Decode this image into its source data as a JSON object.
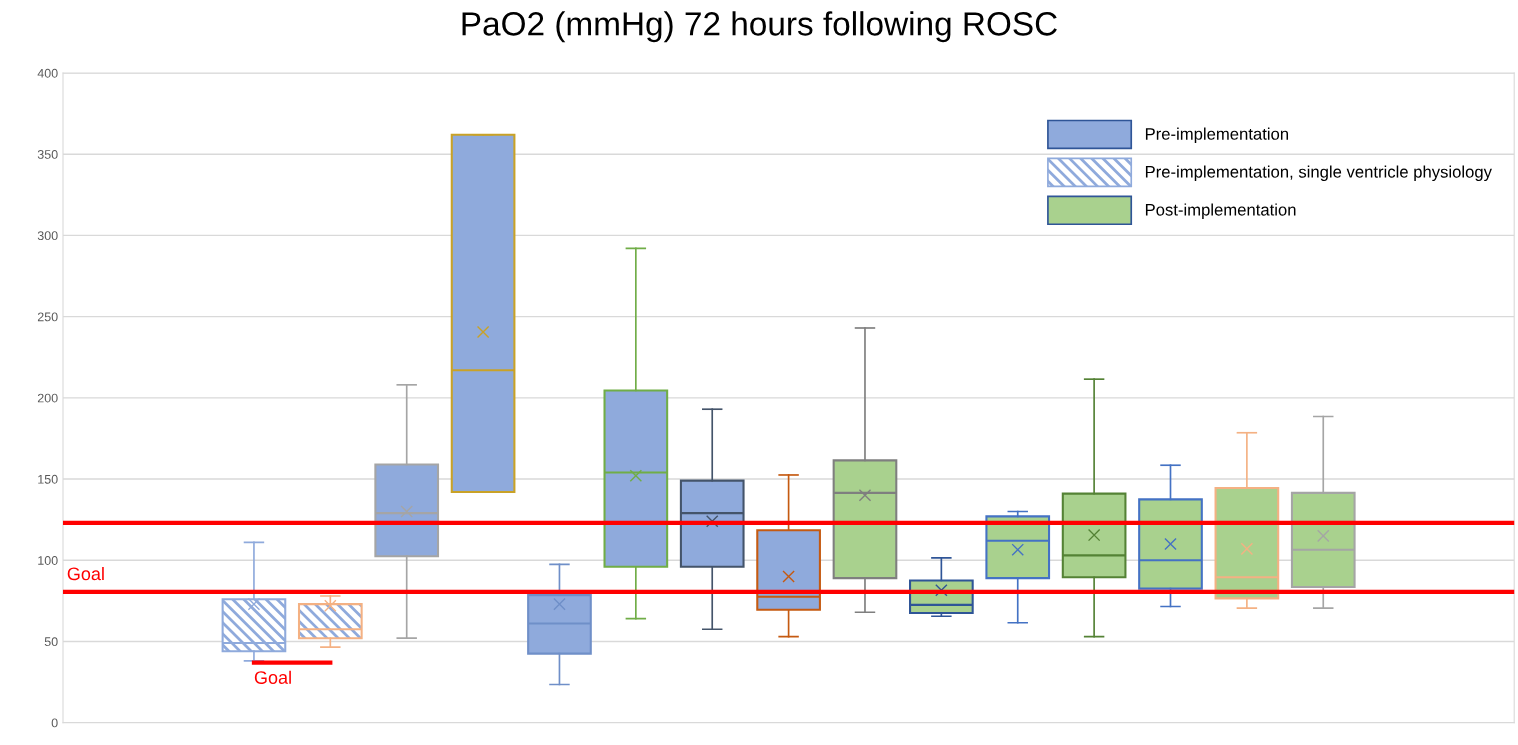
{
  "chart_data": {
    "type": "box",
    "title": "PaO2 (mmHg) 72 hours following ROSC",
    "categories": [
      null,
      null,
      null,
      null,
      null,
      null,
      null,
      null,
      null,
      null,
      null,
      null,
      null,
      null,
      null,
      null,
      null,
      null,
      null
    ],
    "ylim": [
      0,
      400
    ],
    "yticks": [
      0,
      50,
      100,
      150,
      200,
      250,
      300,
      350,
      400
    ],
    "grid": "y",
    "legend": "top right",
    "series": [
      {
        "name": "Pre-implementation",
        "color": "#8faadc",
        "marker": "cross",
        "colors": [
          null,
          null,
          null,
          null,
          "#a5a5a5",
          "#c9a227",
          "#6f8fc8",
          "#70ad47",
          "#44546a",
          "#c55a11",
          null,
          null,
          null,
          null,
          null,
          null,
          null,
          null,
          null
        ],
        "boxes": [
          null,
          null,
          null,
          null,
          {
            "low": 52,
            "q1": 102.5,
            "median": 129,
            "q3": 159,
            "high": 208,
            "mean": 130
          },
          {
            "low": 142,
            "q1": 142,
            "median": 217,
            "q3": 362,
            "high": 362,
            "mean": 240.5
          },
          {
            "low": 23.5,
            "q1": 42.5,
            "median": 61,
            "q3": 78.5,
            "high": 97.5,
            "mean": 73
          },
          {
            "low": 64,
            "q1": 96,
            "median": 154,
            "q3": 204.5,
            "high": 292,
            "mean": 152
          },
          {
            "low": 57.5,
            "q1": 96,
            "median": 129,
            "q3": 149,
            "high": 193,
            "mean": 124
          },
          {
            "low": 53,
            "q1": 69.5,
            "median": 77.5,
            "q3": 118.5,
            "high": 152.5,
            "mean": 90
          },
          null,
          null,
          null,
          null,
          null,
          null,
          null,
          null,
          null
        ]
      },
      {
        "name": "Pre-implementation, single ventricle physiology",
        "color": "#ffffff",
        "marker": "cross",
        "colors": [
          null,
          null,
          "#8faadc",
          "#f4b183",
          null,
          null,
          null,
          null,
          null,
          null,
          null,
          null,
          null,
          null,
          null,
          null,
          null,
          null,
          null
        ],
        "boxes": [
          null,
          null,
          {
            "low": 38,
            "q1": 44,
            "median": 49,
            "q3": 76,
            "high": 111,
            "mean": 73
          },
          {
            "low": 46.5,
            "q1": 52,
            "median": 57.5,
            "q3": 73,
            "high": 78,
            "mean": 72
          },
          null,
          null,
          null,
          null,
          null,
          null,
          null,
          null,
          null,
          null,
          null,
          null,
          null,
          null,
          null
        ]
      },
      {
        "name": "Post-implementation",
        "color": "#a9d18e",
        "marker": "cross",
        "colors": [
          null,
          null,
          null,
          null,
          null,
          null,
          null,
          null,
          null,
          null,
          "#7f7f7f",
          "#2f5597",
          "#4472c4",
          "#548235",
          "#4472c4",
          "#f4b183",
          "#a5a5a5",
          null,
          null
        ],
        "boxes": [
          null,
          null,
          null,
          null,
          null,
          null,
          null,
          null,
          null,
          null,
          {
            "low": 68,
            "q1": 89,
            "median": 141.5,
            "q3": 161.5,
            "high": 243,
            "mean": 140
          },
          {
            "low": 65.5,
            "q1": 67.5,
            "median": 72.5,
            "q3": 87.5,
            "high": 101.5,
            "mean": 81.5
          },
          {
            "low": 61.5,
            "q1": 89,
            "median": 112,
            "q3": 127,
            "high": 130,
            "mean": 106.5
          },
          {
            "low": 53,
            "q1": 89.5,
            "median": 103,
            "q3": 141,
            "high": 211.5,
            "mean": 115.5
          },
          {
            "low": 71.5,
            "q1": 82.5,
            "median": 100,
            "q3": 137.5,
            "high": 158.5,
            "mean": 110
          },
          {
            "low": 70.5,
            "q1": 76.5,
            "median": 89.5,
            "q3": 144.5,
            "high": 178.5,
            "mean": 107
          },
          {
            "low": 70.5,
            "q1": 83.5,
            "median": 106.5,
            "q3": 141.5,
            "high": 188.5,
            "mean": 115
          },
          null,
          null
        ]
      },
      {
        "type": "line",
        "color": "#ff0000",
        "values": [
          null,
          null,
          37,
          37,
          null,
          null,
          null,
          null,
          null,
          null,
          null,
          null,
          null,
          null,
          null,
          null,
          null,
          null,
          null
        ]
      }
    ],
    "ref_lines": [
      {
        "axis": "y",
        "value": 123,
        "label": null,
        "color": "#ff0000"
      },
      {
        "axis": "y",
        "value": 80.5,
        "label": "Goal",
        "color": "#ff0000"
      }
    ],
    "annotations": [
      "Goal"
    ]
  }
}
